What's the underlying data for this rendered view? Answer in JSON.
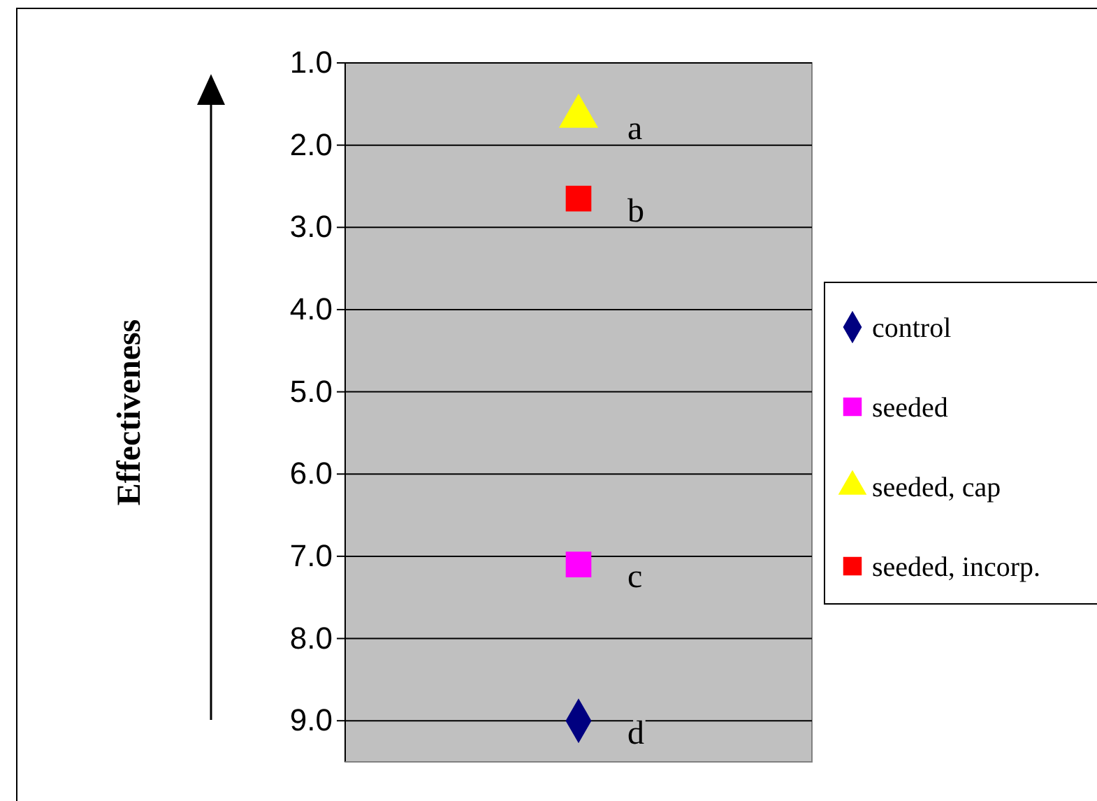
{
  "chart_data": {
    "type": "scatter",
    "ylabel": "Effectiveness",
    "categories": [
      null
    ],
    "series": [
      {
        "name": "control",
        "color": "#000080",
        "marker": "diamond",
        "values": [
          9.0
        ]
      },
      {
        "name": "seeded",
        "color": "#ff00ff",
        "marker": "square",
        "values": [
          7.1
        ]
      },
      {
        "name": "seeded, cap",
        "color": "#ffff00",
        "marker": "triangle",
        "values": [
          1.65
        ]
      },
      {
        "name": "seeded, incorp.",
        "color": "#ff0000",
        "marker": "square",
        "values": [
          2.65
        ]
      }
    ],
    "ylim": [
      9.5,
      1.0
    ],
    "yticks": [
      {
        "value": 1,
        "label": "1.0"
      },
      {
        "value": 2,
        "label": "2.0"
      },
      {
        "value": 3,
        "label": "3.0"
      },
      {
        "value": 4,
        "label": "4.0"
      },
      {
        "value": 5,
        "label": "5.0"
      },
      {
        "value": 6,
        "label": "6.0"
      },
      {
        "value": 7,
        "label": "7.0"
      },
      {
        "value": 8,
        "label": "8.0"
      },
      {
        "value": 9,
        "label": "9.0"
      }
    ],
    "grid": "y",
    "legend": "right",
    "annotations": [
      "a",
      "b",
      "c",
      "d"
    ]
  }
}
